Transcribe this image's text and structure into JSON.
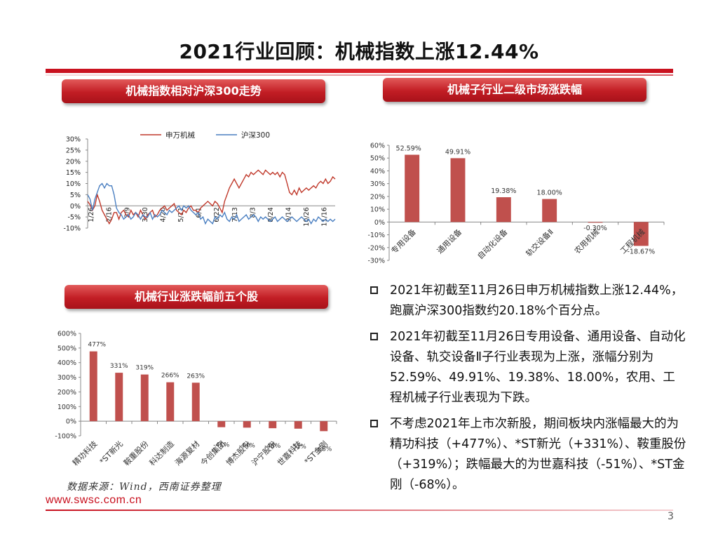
{
  "page": {
    "title": "2021行业回顾：机械指数上涨12.44%",
    "source": "数据来源：Wind，西南证券整理",
    "website": "www.swsc.com.cn",
    "page_number": "3",
    "accent_color": "#c8101e"
  },
  "sections": {
    "trend": "机械指数相对沪深300走势",
    "sub_industry": "机械子行业二级市场涨跌幅",
    "top_stocks": "机械行业涨跌幅前五个股"
  },
  "bullets": [
    "2021年初截至11月26日申万机械指数上涨12.44%，跑赢沪深300指数约20.18%个百分点。",
    "2021年初截至11月26日专用设备、通用设备、自动化设备、轨交设备Ⅱ子行业表现为上涨，涨幅分别为52.59%、49.91%、19.38%、18.00%，农用、工程机械子行业表现为下跌。",
    "不考虑2021年上市次新股，期间板块内涨幅最大的为精功科技（+477%）、*ST新光（+331%）、鞍重股份（+319%）；跌幅最大的为世嘉科技（-51%）、*ST金刚（-68%）。"
  ],
  "chart_data": [
    {
      "type": "line",
      "legend_position": "top-center",
      "ylim": [
        -10,
        30
      ],
      "yticks": [
        "30%",
        "25%",
        "20%",
        "15%",
        "10%",
        "5%",
        "0%",
        "-5%",
        "-10%"
      ],
      "xtick_labels": [
        "1/26",
        "2/16",
        "3/9",
        "3/30",
        "4/20",
        "5/11",
        "6/1",
        "6/22",
        "7/13",
        "8/3",
        "8/24",
        "9/14",
        "10/26",
        "11/16"
      ],
      "series": [
        {
          "name": "申万机械",
          "color": "#c0392b",
          "values": [
            2,
            0.5,
            -2,
            0,
            5,
            2,
            -2,
            -4,
            -6,
            -8,
            -6,
            -3,
            -3,
            -6,
            -3,
            -2,
            -4,
            -5,
            -2,
            -4,
            -3,
            -5,
            -2,
            -4,
            -6,
            -4,
            -3,
            -2,
            -5,
            -4,
            -2,
            -1,
            0,
            -2,
            -1,
            0,
            1,
            -2,
            -3,
            -4,
            -2,
            -3,
            -1,
            0,
            -2,
            -2,
            -3,
            -1,
            0,
            1,
            2,
            1,
            0,
            2,
            1,
            -1,
            -3,
            2,
            5,
            8,
            10,
            12,
            10,
            8,
            10,
            12,
            14,
            13,
            15,
            14,
            15,
            16,
            15,
            14,
            16,
            15,
            14,
            15,
            14,
            15,
            13,
            15,
            14,
            10,
            6,
            5,
            7,
            5,
            8,
            6,
            7,
            8,
            7,
            8,
            9,
            8,
            10,
            11,
            10,
            12,
            10,
            11,
            13,
            12
          ]
        },
        {
          "name": "沪深300",
          "color": "#4a7fc1",
          "values": [
            5,
            3,
            -2,
            3,
            6,
            9,
            10,
            8,
            10,
            9,
            9,
            5,
            -1,
            -3,
            -4,
            -6,
            -5,
            -4,
            -6,
            -5,
            -3,
            -4,
            -6,
            -4,
            -5,
            -5,
            -3,
            -6,
            -4,
            -5,
            -4,
            -2,
            -3,
            -4,
            -2,
            -3,
            -2,
            -1,
            0,
            -2,
            0,
            -1,
            0,
            -2,
            -3,
            -4,
            -3,
            -6,
            -5,
            -8,
            -6,
            -7,
            -8,
            -5,
            -6,
            -4,
            -5,
            -3,
            -6,
            -7,
            -5,
            -6,
            -4,
            -7,
            -6,
            -5,
            -4,
            -6,
            -5,
            -4,
            -5,
            -7,
            -5,
            -6,
            -5,
            -6,
            -7,
            -6,
            -5,
            -7,
            -6,
            -5,
            -6,
            -7,
            -6,
            -5,
            -6,
            -7,
            -6,
            -5,
            -6,
            -7,
            -6,
            -8,
            -6,
            -7,
            -5,
            -6,
            -7,
            -6,
            -7,
            -6,
            -7,
            -6
          ]
        }
      ]
    },
    {
      "type": "bar",
      "ylim": [
        -30,
        60
      ],
      "yticks": [
        "60%",
        "50%",
        "40%",
        "30%",
        "20%",
        "10%",
        "0%",
        "-10%",
        "-20%",
        "-30%"
      ],
      "categories": [
        "专用设备",
        "通用设备",
        "自动化设备",
        "轨交设备Ⅱ",
        "农用机械",
        "工程机械"
      ],
      "values": [
        52.59,
        49.91,
        19.38,
        18.0,
        -0.3,
        -18.67
      ],
      "labels": [
        "52.59%",
        "49.91%",
        "19.38%",
        "18.00%",
        "-0.30%",
        "-18.67%"
      ],
      "color": "#c0504d"
    },
    {
      "type": "bar",
      "ylim": [
        -100,
        600
      ],
      "yticks": [
        "600%",
        "500%",
        "400%",
        "300%",
        "200%",
        "100%",
        "0%",
        "-100%"
      ],
      "categories": [
        "精功科技",
        "*ST新光",
        "鞍重股份",
        "科达制造",
        "海源复材",
        "今创集团",
        "博杰股份",
        "沪宁股份",
        "世嘉科技",
        "*ST金刚"
      ],
      "values": [
        477,
        331,
        319,
        266,
        263,
        -41,
        -44,
        -48,
        -51,
        -68
      ],
      "labels": [
        "477%",
        "331%",
        "319%",
        "266%",
        "263%",
        "-41%",
        "-44%",
        "-48%",
        "-51%",
        "-68%"
      ],
      "color": "#c0504d"
    }
  ]
}
